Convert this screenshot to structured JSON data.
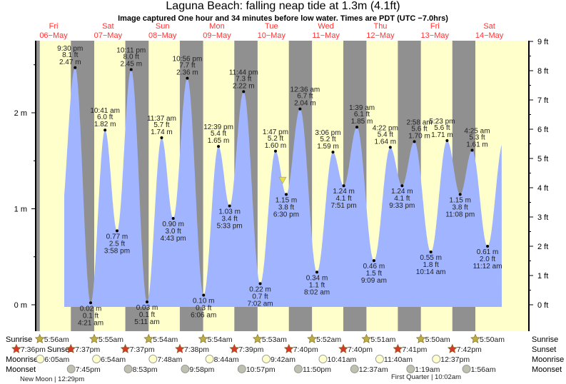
{
  "header": {
    "title": "Laguna Beach: falling  neap tide at 1.3m (4.1ft)",
    "subtitle": "Image captured One hour and 34 minutes before low water. Times are PDT (UTC −7.0hrs)"
  },
  "colors": {
    "day": "#ffffcc",
    "night": "#909090",
    "tide_fill": "#a0b4ff",
    "day_label": "#ff3333",
    "sunrise_star": "#b8b040",
    "sunset_star": "#d83828",
    "moonrise": "#ffffcc",
    "moonset": "#c0c0b0",
    "current_marker": "#e8e040"
  },
  "chart_data": {
    "type": "area",
    "title": "Laguna Beach: falling  neap tide at 1.3m (4.1ft)",
    "left_axis": {
      "unit": "m",
      "ticks": [
        "0 m",
        "1 m",
        "2 m"
      ],
      "range": [
        -0.28,
        2.75
      ]
    },
    "right_axis": {
      "unit": "ft",
      "ticks": [
        "0 ft",
        "1 ft",
        "2 ft",
        "3 ft",
        "4 ft",
        "5 ft",
        "6 ft",
        "7 ft",
        "8 ft",
        "9 ft"
      ]
    },
    "days": [
      {
        "dow": "Fri",
        "date": "06−May"
      },
      {
        "dow": "Sat",
        "date": "07−May"
      },
      {
        "dow": "Sun",
        "date": "08−May"
      },
      {
        "dow": "Mon",
        "date": "09−May"
      },
      {
        "dow": "Tue",
        "date": "10−May"
      },
      {
        "dow": "Wed",
        "date": "11−May"
      },
      {
        "dow": "Thu",
        "date": "12−May"
      },
      {
        "dow": "Fri",
        "date": "13−May"
      },
      {
        "dow": "Sat",
        "date": "14−May"
      }
    ],
    "tide_events": [
      {
        "day": "06-May",
        "type": "high",
        "time": "9:30 pm",
        "ft": "8.1 ft",
        "m": "2.47 m",
        "value_m": 2.47
      },
      {
        "day": "07-May",
        "type": "low",
        "time": "4:21 am",
        "ft": "0.1 ft",
        "m": "0.02 m",
        "value_m": 0.02
      },
      {
        "day": "07-May",
        "type": "high",
        "time": "10:41 am",
        "ft": "6.0 ft",
        "m": "1.82 m",
        "value_m": 1.82
      },
      {
        "day": "07-May",
        "type": "low",
        "time": "3:58 pm",
        "ft": "2.5 ft",
        "m": "0.77 m",
        "value_m": 0.77
      },
      {
        "day": "07-May",
        "type": "high",
        "time": "10:11 pm",
        "ft": "8.0 ft",
        "m": "2.45 m",
        "value_m": 2.45
      },
      {
        "day": "08-May",
        "type": "low",
        "time": "5:11 am",
        "ft": "0.1 ft",
        "m": "0.03 m",
        "value_m": 0.03
      },
      {
        "day": "08-May",
        "type": "high",
        "time": "11:37 am",
        "ft": "5.7 ft",
        "m": "1.74 m",
        "value_m": 1.74
      },
      {
        "day": "08-May",
        "type": "low",
        "time": "4:43 pm",
        "ft": "3.0 ft",
        "m": "0.90 m",
        "value_m": 0.9
      },
      {
        "day": "08-May",
        "type": "high",
        "time": "10:56 pm",
        "ft": "7.7 ft",
        "m": "2.36 m",
        "value_m": 2.36
      },
      {
        "day": "09-May",
        "type": "low",
        "time": "6:06 am",
        "ft": "0.3 ft",
        "m": "0.10 m",
        "value_m": 0.1
      },
      {
        "day": "09-May",
        "type": "high",
        "time": "12:39 pm",
        "ft": "5.4 ft",
        "m": "1.65 m",
        "value_m": 1.65
      },
      {
        "day": "09-May",
        "type": "low",
        "time": "5:33 pm",
        "ft": "3.4 ft",
        "m": "1.03 m",
        "value_m": 1.03
      },
      {
        "day": "09-May",
        "type": "high",
        "time": "11:44 pm",
        "ft": "7.3 ft",
        "m": "2.22 m",
        "value_m": 2.22
      },
      {
        "day": "10-May",
        "type": "low",
        "time": "7:02 am",
        "ft": "0.7 ft",
        "m": "0.22 m",
        "value_m": 0.22
      },
      {
        "day": "10-May",
        "type": "high",
        "time": "1:47 pm",
        "ft": "5.2 ft",
        "m": "1.60 m",
        "value_m": 1.6
      },
      {
        "day": "10-May",
        "type": "low",
        "time": "6:30 pm",
        "ft": "3.8 ft",
        "m": "1.15 m",
        "value_m": 1.15
      },
      {
        "day": "11-May",
        "type": "high",
        "time": "12:36 am",
        "ft": "6.7 ft",
        "m": "2.04 m",
        "value_m": 2.04
      },
      {
        "day": "11-May",
        "type": "low",
        "time": "8:02 am",
        "ft": "1.1 ft",
        "m": "0.34 m",
        "value_m": 0.34
      },
      {
        "day": "11-May",
        "type": "high",
        "time": "3:06 pm",
        "ft": "5.2 ft",
        "m": "1.59 m",
        "value_m": 1.59
      },
      {
        "day": "11-May",
        "type": "low",
        "time": "7:51 pm",
        "ft": "4.1 ft",
        "m": "1.24 m",
        "value_m": 1.24
      },
      {
        "day": "12-May",
        "type": "high",
        "time": "1:39 am",
        "ft": "6.1 ft",
        "m": "1.85 m",
        "value_m": 1.85
      },
      {
        "day": "12-May",
        "type": "low",
        "time": "9:09 am",
        "ft": "1.5 ft",
        "m": "0.46 m",
        "value_m": 0.46
      },
      {
        "day": "12-May",
        "type": "high",
        "time": "4:22 pm",
        "ft": "5.4 ft",
        "m": "1.64 m",
        "value_m": 1.64
      },
      {
        "day": "12-May",
        "type": "low",
        "time": "9:33 pm",
        "ft": "4.1 ft",
        "m": "1.24 m",
        "value_m": 1.24
      },
      {
        "day": "13-May",
        "type": "high",
        "time": "2:58 am",
        "ft": "5.6 ft",
        "m": "1.70 m",
        "value_m": 1.7
      },
      {
        "day": "13-May",
        "type": "low",
        "time": "10:14 am",
        "ft": "1.8 ft",
        "m": "0.55 m",
        "value_m": 0.55
      },
      {
        "day": "13-May",
        "type": "high",
        "time": "5:23 pm",
        "ft": "5.6 ft",
        "m": "1.71 m",
        "value_m": 1.71
      },
      {
        "day": "13-May",
        "type": "low",
        "time": "11:08 pm",
        "ft": "3.8 ft",
        "m": "1.15 m",
        "value_m": 1.15
      },
      {
        "day": "14-May",
        "type": "high",
        "time": "4:25 am",
        "ft": "5.3 ft",
        "m": "1.61 m",
        "value_m": 1.61
      },
      {
        "day": "14-May",
        "type": "low",
        "time": "11:12 am",
        "ft": "2.0 ft",
        "m": "0.61 m",
        "value_m": 0.61
      }
    ],
    "current": {
      "day": "10-May",
      "time": "4:56 pm",
      "value_m": 1.3,
      "value_ft": 4.1,
      "state": "falling"
    },
    "grid": false,
    "legend": "none"
  },
  "almanac": {
    "labels": {
      "sunrise": "Sunrise",
      "sunset": "Sunset",
      "moonrise": "Moonrise",
      "moonset": "Moonset"
    },
    "sunrise": [
      {
        "day": "06-May",
        "time": "5:56am"
      },
      {
        "day": "07-May",
        "time": "5:55am"
      },
      {
        "day": "08-May",
        "time": "5:54am"
      },
      {
        "day": "09-May",
        "time": "5:54am"
      },
      {
        "day": "10-May",
        "time": "5:53am"
      },
      {
        "day": "11-May",
        "time": "5:52am"
      },
      {
        "day": "12-May",
        "time": "5:51am"
      },
      {
        "day": "13-May",
        "time": "5:50am"
      },
      {
        "day": "14-May",
        "time": "5:50am"
      }
    ],
    "sunset": [
      {
        "day": "05-May",
        "time": "7:36pm"
      },
      {
        "day": "06-May",
        "time": "7:37pm"
      },
      {
        "day": "07-May",
        "time": "7:37pm"
      },
      {
        "day": "08-May",
        "time": "7:38pm"
      },
      {
        "day": "09-May",
        "time": "7:39pm"
      },
      {
        "day": "10-May",
        "time": "7:40pm"
      },
      {
        "day": "11-May",
        "time": "7:40pm"
      },
      {
        "day": "12-May",
        "time": "7:41pm"
      },
      {
        "day": "13-May",
        "time": "7:42pm"
      }
    ],
    "moonrise": [
      {
        "day": "06-May",
        "time": "6:05am"
      },
      {
        "day": "07-May",
        "time": "6:54am"
      },
      {
        "day": "08-May",
        "time": "7:48am"
      },
      {
        "day": "09-May",
        "time": "8:44am"
      },
      {
        "day": "10-May",
        "time": "9:42am"
      },
      {
        "day": "11-May",
        "time": "10:41am"
      },
      {
        "day": "12-May",
        "time": "11:40am"
      },
      {
        "day": "13-May",
        "time": "12:37pm"
      }
    ],
    "moonset": [
      {
        "day": "06-May",
        "time": "7:45pm"
      },
      {
        "day": "07-May",
        "time": "8:53pm"
      },
      {
        "day": "08-May",
        "time": "9:58pm"
      },
      {
        "day": "09-May",
        "time": "10:57pm"
      },
      {
        "day": "10-May",
        "time": "11:50pm"
      },
      {
        "day": "12-May",
        "time": "12:37am"
      },
      {
        "day": "13-May",
        "time": "1:19am"
      },
      {
        "day": "14-May",
        "time": "1:56am"
      }
    ],
    "phases": [
      {
        "label": "New Moon | 12:29pm"
      },
      {
        "label": "First Quarter | 10:02am"
      }
    ]
  }
}
